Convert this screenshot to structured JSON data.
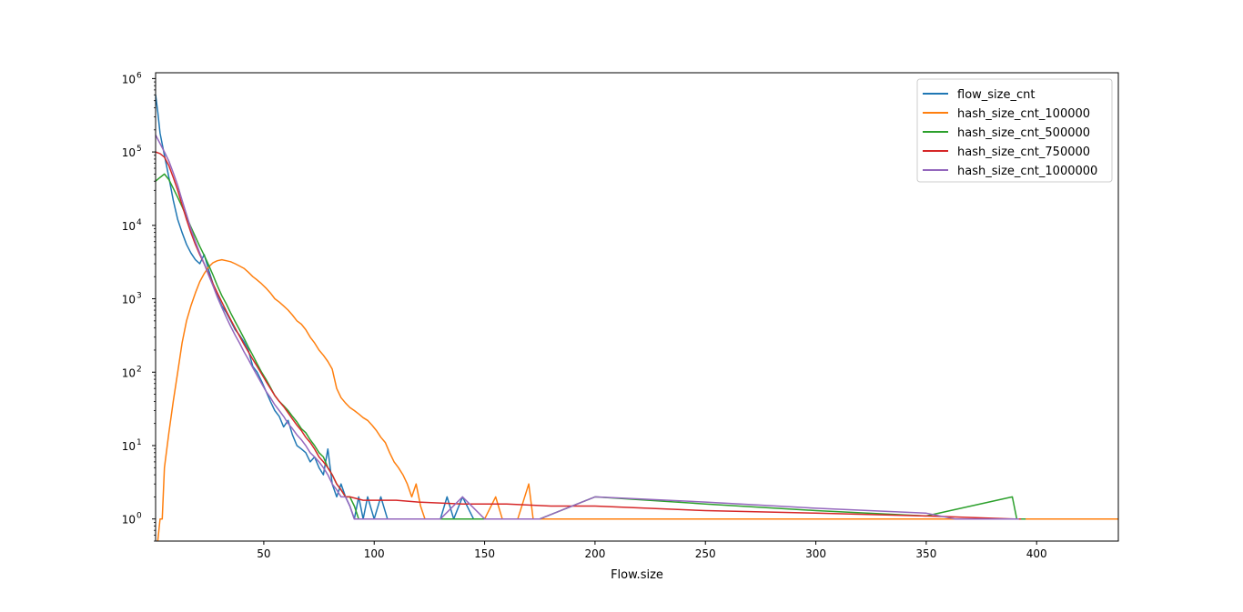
{
  "chart_data": {
    "type": "line",
    "title": "",
    "xlabel": "Flow.size",
    "ylabel": "",
    "xlim": [
      1,
      437
    ],
    "ylim": [
      0.5,
      1200000
    ],
    "yscale": "log",
    "grid": false,
    "legend_position": "upper right",
    "x_ticks": [
      50,
      100,
      150,
      200,
      250,
      300,
      350,
      400
    ],
    "y_ticks": [
      {
        "value": 1,
        "base": "10",
        "exp": "0"
      },
      {
        "value": 10,
        "base": "10",
        "exp": "1"
      },
      {
        "value": 100,
        "base": "10",
        "exp": "2"
      },
      {
        "value": 1000,
        "base": "10",
        "exp": "3"
      },
      {
        "value": 10000,
        "base": "10",
        "exp": "4"
      },
      {
        "value": 100000,
        "base": "10",
        "exp": "5"
      },
      {
        "value": 1000000,
        "base": "10",
        "exp": "6"
      }
    ],
    "series": [
      {
        "name": "flow_size_cnt",
        "color": "#1f77b4",
        "points": [
          [
            1,
            600000
          ],
          [
            2,
            350000
          ],
          [
            3,
            180000
          ],
          [
            5,
            90000
          ],
          [
            7,
            45000
          ],
          [
            9,
            22000
          ],
          [
            11,
            12000
          ],
          [
            13,
            8000
          ],
          [
            15,
            5500
          ],
          [
            17,
            4200
          ],
          [
            19,
            3400
          ],
          [
            21,
            3000
          ],
          [
            23,
            4000
          ],
          [
            25,
            2500
          ],
          [
            27,
            1600
          ],
          [
            29,
            1100
          ],
          [
            31,
            800
          ],
          [
            33,
            650
          ],
          [
            35,
            500
          ],
          [
            37,
            380
          ],
          [
            39,
            320
          ],
          [
            41,
            260
          ],
          [
            43,
            200
          ],
          [
            45,
            120
          ],
          [
            47,
            100
          ],
          [
            49,
            75
          ],
          [
            51,
            55
          ],
          [
            53,
            40
          ],
          [
            55,
            30
          ],
          [
            57,
            25
          ],
          [
            59,
            18
          ],
          [
            61,
            22
          ],
          [
            63,
            14
          ],
          [
            65,
            10
          ],
          [
            67,
            9
          ],
          [
            69,
            8
          ],
          [
            71,
            6
          ],
          [
            73,
            7
          ],
          [
            75,
            5
          ],
          [
            77,
            4
          ],
          [
            79,
            9
          ],
          [
            81,
            3
          ],
          [
            83,
            2
          ],
          [
            85,
            3
          ],
          [
            87,
            2
          ],
          [
            89,
            1.5
          ],
          [
            91,
            1
          ],
          [
            93,
            2
          ],
          [
            95,
            1
          ],
          [
            97,
            2
          ],
          [
            100,
            1
          ],
          [
            103,
            2
          ],
          [
            106,
            1
          ],
          [
            110,
            1
          ],
          [
            115,
            1
          ],
          [
            120,
            1
          ],
          [
            125,
            1
          ],
          [
            130,
            1
          ],
          [
            133,
            2
          ],
          [
            136,
            1
          ],
          [
            140,
            2
          ],
          [
            145,
            1
          ],
          [
            150,
            1
          ]
        ]
      },
      {
        "name": "hash_size_cnt_100000",
        "color": "#ff7f0e",
        "points": [
          [
            2,
            0.5
          ],
          [
            3,
            1
          ],
          [
            4,
            1
          ],
          [
            5,
            5
          ],
          [
            7,
            15
          ],
          [
            9,
            40
          ],
          [
            11,
            100
          ],
          [
            13,
            250
          ],
          [
            15,
            500
          ],
          [
            17,
            800
          ],
          [
            19,
            1200
          ],
          [
            21,
            1700
          ],
          [
            23,
            2200
          ],
          [
            25,
            2700
          ],
          [
            27,
            3100
          ],
          [
            29,
            3300
          ],
          [
            31,
            3400
          ],
          [
            33,
            3300
          ],
          [
            35,
            3200
          ],
          [
            37,
            3000
          ],
          [
            39,
            2800
          ],
          [
            41,
            2600
          ],
          [
            43,
            2300
          ],
          [
            45,
            2000
          ],
          [
            47,
            1800
          ],
          [
            49,
            1600
          ],
          [
            51,
            1400
          ],
          [
            53,
            1200
          ],
          [
            55,
            1000
          ],
          [
            57,
            900
          ],
          [
            59,
            800
          ],
          [
            61,
            700
          ],
          [
            63,
            600
          ],
          [
            65,
            500
          ],
          [
            67,
            450
          ],
          [
            69,
            380
          ],
          [
            71,
            300
          ],
          [
            73,
            250
          ],
          [
            75,
            200
          ],
          [
            77,
            170
          ],
          [
            79,
            140
          ],
          [
            81,
            110
          ],
          [
            83,
            60
          ],
          [
            85,
            45
          ],
          [
            87,
            38
          ],
          [
            89,
            33
          ],
          [
            91,
            30
          ],
          [
            93,
            27
          ],
          [
            95,
            24
          ],
          [
            97,
            22
          ],
          [
            99,
            19
          ],
          [
            101,
            16
          ],
          [
            103,
            13
          ],
          [
            105,
            11
          ],
          [
            107,
            8
          ],
          [
            109,
            6
          ],
          [
            111,
            5
          ],
          [
            113,
            4
          ],
          [
            115,
            3
          ],
          [
            117,
            2
          ],
          [
            119,
            3
          ],
          [
            121,
            1.5
          ],
          [
            123,
            1
          ],
          [
            125,
            1
          ],
          [
            128,
            1
          ],
          [
            131,
            1
          ],
          [
            135,
            1
          ],
          [
            140,
            1
          ],
          [
            145,
            1
          ],
          [
            150,
            1
          ],
          [
            155,
            2
          ],
          [
            158,
            1
          ],
          [
            165,
            1
          ],
          [
            170,
            3
          ],
          [
            172,
            1
          ],
          [
            200,
            1
          ],
          [
            250,
            1
          ],
          [
            300,
            1
          ],
          [
            350,
            1
          ],
          [
            400,
            1
          ],
          [
            437,
            1
          ]
        ]
      },
      {
        "name": "hash_size_cnt_500000",
        "color": "#2ca02c",
        "points": [
          [
            1,
            40000
          ],
          [
            3,
            45000
          ],
          [
            5,
            50000
          ],
          [
            7,
            42000
          ],
          [
            9,
            32000
          ],
          [
            11,
            24000
          ],
          [
            13,
            18000
          ],
          [
            15,
            13000
          ],
          [
            17,
            9500
          ],
          [
            19,
            7000
          ],
          [
            21,
            5200
          ],
          [
            23,
            3900
          ],
          [
            25,
            2900
          ],
          [
            27,
            2100
          ],
          [
            29,
            1500
          ],
          [
            31,
            1100
          ],
          [
            33,
            850
          ],
          [
            35,
            640
          ],
          [
            37,
            490
          ],
          [
            39,
            380
          ],
          [
            41,
            290
          ],
          [
            43,
            220
          ],
          [
            45,
            170
          ],
          [
            47,
            130
          ],
          [
            49,
            100
          ],
          [
            51,
            80
          ],
          [
            53,
            62
          ],
          [
            55,
            48
          ],
          [
            57,
            40
          ],
          [
            59,
            35
          ],
          [
            61,
            30
          ],
          [
            63,
            25
          ],
          [
            65,
            21
          ],
          [
            67,
            17
          ],
          [
            69,
            15
          ],
          [
            71,
            12
          ],
          [
            73,
            10
          ],
          [
            75,
            8
          ],
          [
            77,
            7
          ],
          [
            79,
            5
          ],
          [
            81,
            4
          ],
          [
            83,
            3
          ],
          [
            85,
            2.5
          ],
          [
            87,
            2
          ],
          [
            89,
            2
          ],
          [
            91,
            1.5
          ],
          [
            93,
            1
          ],
          [
            95,
            1
          ],
          [
            100,
            1
          ],
          [
            110,
            1
          ],
          [
            120,
            1
          ],
          [
            130,
            1
          ],
          [
            140,
            1
          ],
          [
            150,
            1
          ],
          [
            175,
            1
          ],
          [
            200,
            2
          ],
          [
            250,
            1.6
          ],
          [
            300,
            1.3
          ],
          [
            350,
            1.1
          ],
          [
            389,
            2
          ],
          [
            391,
            1
          ],
          [
            395,
            1
          ]
        ]
      },
      {
        "name": "hash_size_cnt_750000",
        "color": "#d62728",
        "points": [
          [
            1,
            100000
          ],
          [
            3,
            95000
          ],
          [
            5,
            85000
          ],
          [
            7,
            65000
          ],
          [
            9,
            45000
          ],
          [
            11,
            30000
          ],
          [
            13,
            19000
          ],
          [
            15,
            12000
          ],
          [
            17,
            8000
          ],
          [
            19,
            5500
          ],
          [
            21,
            4000
          ],
          [
            23,
            3000
          ],
          [
            25,
            2200
          ],
          [
            27,
            1600
          ],
          [
            29,
            1200
          ],
          [
            31,
            900
          ],
          [
            33,
            680
          ],
          [
            35,
            520
          ],
          [
            37,
            400
          ],
          [
            39,
            310
          ],
          [
            41,
            240
          ],
          [
            43,
            190
          ],
          [
            45,
            150
          ],
          [
            47,
            120
          ],
          [
            49,
            95
          ],
          [
            51,
            75
          ],
          [
            53,
            60
          ],
          [
            55,
            48
          ],
          [
            57,
            40
          ],
          [
            59,
            34
          ],
          [
            61,
            28
          ],
          [
            63,
            23
          ],
          [
            65,
            19
          ],
          [
            67,
            16
          ],
          [
            69,
            13
          ],
          [
            71,
            11
          ],
          [
            73,
            9
          ],
          [
            75,
            7
          ],
          [
            77,
            6
          ],
          [
            79,
            5
          ],
          [
            81,
            4
          ],
          [
            83,
            3
          ],
          [
            85,
            2.5
          ],
          [
            87,
            2
          ],
          [
            89,
            2
          ],
          [
            95,
            1.8
          ],
          [
            100,
            1.8
          ],
          [
            110,
            1.8
          ],
          [
            120,
            1.7
          ],
          [
            140,
            1.6
          ],
          [
            160,
            1.6
          ],
          [
            180,
            1.5
          ],
          [
            200,
            1.5
          ],
          [
            250,
            1.3
          ],
          [
            300,
            1.2
          ],
          [
            350,
            1.1
          ],
          [
            390,
            1
          ],
          [
            393,
            1
          ]
        ]
      },
      {
        "name": "hash_size_cnt_1000000",
        "color": "#9467bd",
        "points": [
          [
            1,
            170000
          ],
          [
            3,
            130000
          ],
          [
            5,
            100000
          ],
          [
            7,
            75000
          ],
          [
            9,
            52000
          ],
          [
            11,
            35000
          ],
          [
            13,
            22000
          ],
          [
            15,
            14000
          ],
          [
            17,
            9000
          ],
          [
            19,
            6000
          ],
          [
            21,
            4200
          ],
          [
            23,
            3000
          ],
          [
            25,
            2100
          ],
          [
            27,
            1500
          ],
          [
            29,
            1050
          ],
          [
            31,
            760
          ],
          [
            33,
            560
          ],
          [
            35,
            420
          ],
          [
            37,
            320
          ],
          [
            39,
            250
          ],
          [
            41,
            190
          ],
          [
            43,
            150
          ],
          [
            45,
            115
          ],
          [
            47,
            90
          ],
          [
            49,
            70
          ],
          [
            51,
            55
          ],
          [
            53,
            45
          ],
          [
            55,
            36
          ],
          [
            57,
            30
          ],
          [
            59,
            25
          ],
          [
            61,
            20
          ],
          [
            63,
            17
          ],
          [
            65,
            14
          ],
          [
            67,
            12
          ],
          [
            69,
            10
          ],
          [
            71,
            8
          ],
          [
            73,
            7
          ],
          [
            75,
            6
          ],
          [
            77,
            5
          ],
          [
            79,
            4
          ],
          [
            81,
            3
          ],
          [
            83,
            2.5
          ],
          [
            85,
            2
          ],
          [
            87,
            2
          ],
          [
            89,
            1.5
          ],
          [
            91,
            1
          ],
          [
            95,
            1
          ],
          [
            100,
            1
          ],
          [
            110,
            1
          ],
          [
            120,
            1
          ],
          [
            130,
            1
          ],
          [
            140,
            2
          ],
          [
            150,
            1
          ],
          [
            175,
            1
          ],
          [
            200,
            2
          ],
          [
            250,
            1.7
          ],
          [
            300,
            1.4
          ],
          [
            350,
            1.2
          ],
          [
            363,
            1
          ],
          [
            389,
            1
          ],
          [
            392,
            1
          ]
        ]
      }
    ]
  }
}
